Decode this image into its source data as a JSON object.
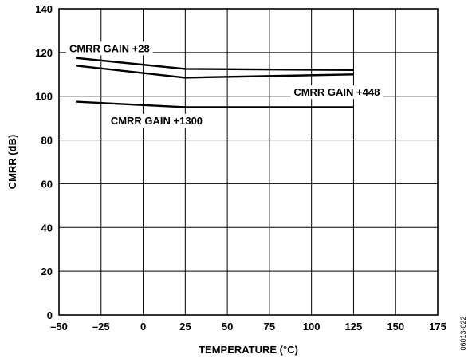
{
  "chart_data": {
    "type": "line",
    "xlabel": "TEMPERATURE (°C)",
    "ylabel": "CMRR (dB)",
    "xlim": [
      -50,
      175
    ],
    "ylim": [
      0,
      140
    ],
    "x_ticks": [
      -50,
      -25,
      0,
      25,
      50,
      75,
      100,
      125,
      150,
      175
    ],
    "x_tick_labels": [
      "–50",
      "–25",
      "0",
      "25",
      "50",
      "75",
      "100",
      "125",
      "150",
      "175"
    ],
    "y_ticks": [
      0,
      20,
      40,
      60,
      80,
      100,
      120,
      140
    ],
    "grid": true,
    "series": [
      {
        "name": "CMRR GAIN +28",
        "x": [
          -40,
          25,
          125
        ],
        "y": [
          117.5,
          112.5,
          112
        ]
      },
      {
        "name": "CMRR GAIN +448",
        "x": [
          -40,
          25,
          125
        ],
        "y": [
          114,
          108.5,
          110
        ]
      },
      {
        "name": "CMRR GAIN +1300",
        "x": [
          -40,
          25,
          125
        ],
        "y": [
          97.5,
          95,
          95
        ]
      }
    ],
    "annotations": [
      {
        "text": "CMRR GAIN +28",
        "x": -20,
        "y": 122,
        "series": 0
      },
      {
        "text": "CMRR GAIN +448",
        "x": 115,
        "y": 102,
        "series": 1
      },
      {
        "text": "CMRR GAIN +1300",
        "x": 8,
        "y": 89,
        "series": 2
      }
    ]
  },
  "figure_id": "06013-022"
}
